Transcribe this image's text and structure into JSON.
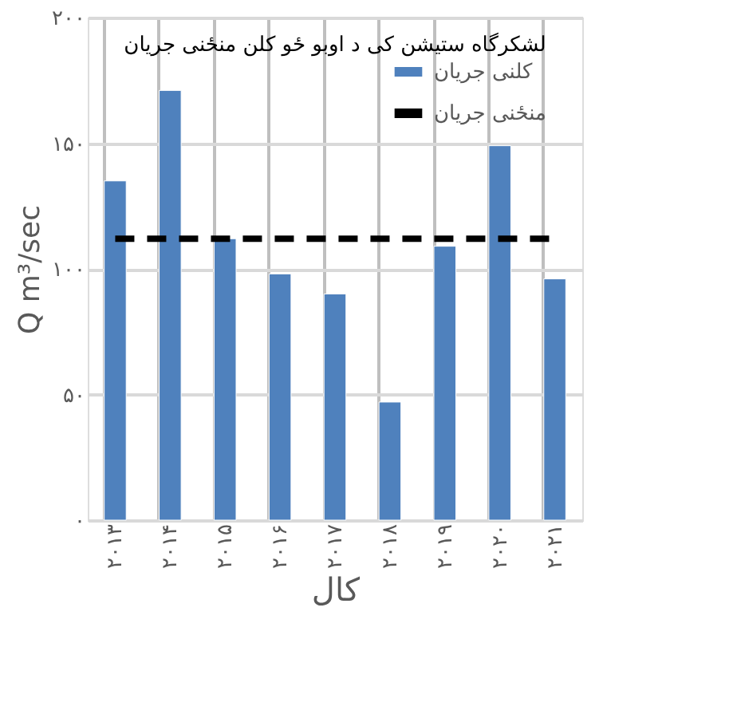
{
  "chart_data": {
    "type": "bar",
    "title": "لشکرگاه ستیشن کی د اوبو ځو کلن منځنی جریان",
    "xlabel": "کال",
    "ylabel": "Q m³/sec",
    "categories": [
      "۲۰۱۳",
      "۲۰۱۴",
      "۲۰۱۵",
      "۲۰۱۶",
      "۲۰۱۷",
      "۲۰۱۸",
      "۲۰۱۹",
      "۲۰۲۰",
      "۲۰۲۱"
    ],
    "series": [
      {
        "name": "کلنی جریان",
        "color": "#4f81bd",
        "values": [
          135,
          171,
          112,
          98,
          90,
          47,
          109,
          149,
          96
        ]
      },
      {
        "name": "منځنی جریان",
        "type": "line",
        "color": "#000000",
        "line_style": "dashed",
        "marker": "none",
        "values": [
          112,
          112,
          112,
          112,
          112,
          112,
          112,
          112,
          112
        ]
      }
    ],
    "ylim": [
      0,
      200
    ],
    "yticks": [
      {
        "value": 0,
        "label": "۰"
      },
      {
        "value": 50,
        "label": "۵۰"
      },
      {
        "value": 100,
        "label": "۱۰۰"
      },
      {
        "value": 150,
        "label": "۱۵۰"
      },
      {
        "value": 200,
        "label": "۲۰۰"
      }
    ],
    "grid": true,
    "legend": "top right"
  }
}
